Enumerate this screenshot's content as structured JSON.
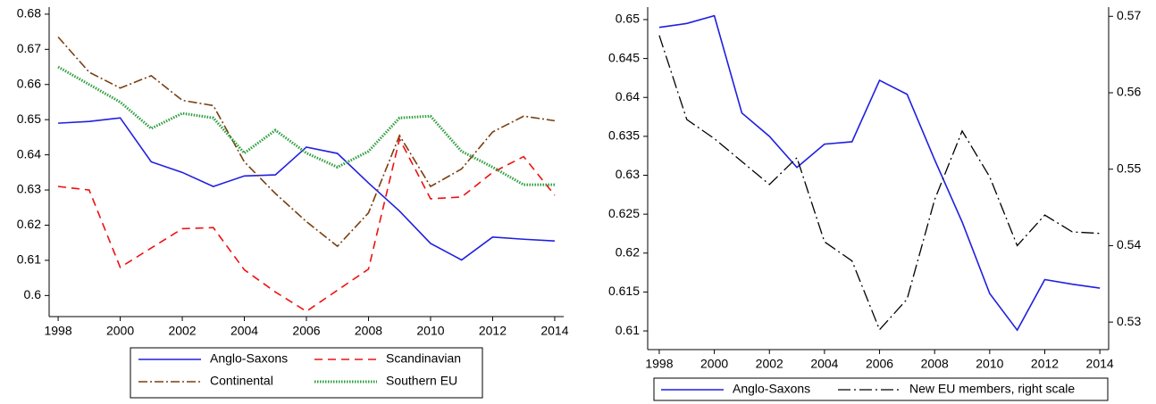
{
  "chart_data": [
    {
      "type": "line",
      "legend": "bottom",
      "x": [
        1998,
        1999,
        2000,
        2001,
        2002,
        2003,
        2004,
        2005,
        2006,
        2007,
        2008,
        2009,
        2010,
        2011,
        2012,
        2013,
        2014
      ],
      "xlim": [
        1997.71,
        2014.29
      ],
      "xticks": [
        1998,
        2000,
        2002,
        2004,
        2006,
        2008,
        2010,
        2012,
        2014
      ],
      "ylim": [
        0.594,
        0.682
      ],
      "yticks": [
        0.6,
        0.61,
        0.62,
        0.63,
        0.64,
        0.65,
        0.66,
        0.67,
        0.68
      ],
      "series": [
        {
          "name": "Anglo-Saxons",
          "color": "#1f1fe0",
          "style": "solid",
          "values": [
            0.649,
            0.6495,
            0.6505,
            0.638,
            0.635,
            0.631,
            0.634,
            0.6343,
            0.6422,
            0.6404,
            0.632,
            0.624,
            0.6148,
            0.6101,
            0.6166,
            0.616,
            0.6155
          ]
        },
        {
          "name": "Scandinavian",
          "color": "#ee1111",
          "style": "dash",
          "values": [
            0.631,
            0.63,
            0.608,
            0.6135,
            0.619,
            0.6193,
            0.6073,
            0.601,
            0.5955,
            0.6015,
            0.6075,
            0.6445,
            0.6275,
            0.628,
            0.635,
            0.6395,
            0.6285
          ]
        },
        {
          "name": "Continental",
          "color": "#7a3f10",
          "style": "dashdot",
          "values": [
            0.6735,
            0.6635,
            0.659,
            0.6625,
            0.6555,
            0.654,
            0.638,
            0.629,
            0.621,
            0.614,
            0.6235,
            0.6455,
            0.631,
            0.636,
            0.6465,
            0.651,
            0.6497
          ]
        },
        {
          "name": "Southern EU",
          "color": "#2e9e3e",
          "style": "dot",
          "values": [
            0.665,
            0.66,
            0.655,
            0.6475,
            0.6518,
            0.6505,
            0.6405,
            0.647,
            0.6405,
            0.6365,
            0.641,
            0.6505,
            0.651,
            0.641,
            0.6365,
            0.6315,
            0.6315
          ]
        }
      ]
    },
    {
      "type": "line",
      "legend": "bottom",
      "x": [
        1998,
        1999,
        2000,
        2001,
        2002,
        2003,
        2004,
        2005,
        2006,
        2007,
        2008,
        2009,
        2010,
        2011,
        2012,
        2013,
        2014
      ],
      "xlim": [
        1997.58,
        2014.32
      ],
      "xticks": [
        1998,
        2000,
        2002,
        2004,
        2006,
        2008,
        2010,
        2012,
        2014
      ],
      "ylim": [
        0.6076,
        0.6516
      ],
      "yticks": [
        0.61,
        0.615,
        0.62,
        0.625,
        0.63,
        0.635,
        0.64,
        0.645,
        0.65
      ],
      "y2lim": [
        0.5264,
        0.5712
      ],
      "y2ticks": [
        0.53,
        0.54,
        0.55,
        0.56,
        0.57
      ],
      "series": [
        {
          "name": "Anglo-Saxons",
          "color": "#1f1fe0",
          "style": "solid",
          "values": [
            0.649,
            0.6495,
            0.6505,
            0.638,
            0.635,
            0.631,
            0.634,
            0.6343,
            0.6422,
            0.6404,
            0.632,
            0.624,
            0.6148,
            0.6101,
            0.6166,
            0.616,
            0.6155
          ]
        },
        {
          "name": "New EU members, right scale",
          "color": "#000000",
          "style": "longdashdot",
          "axis": "y2",
          "values": [
            0.5675,
            0.5565,
            0.554,
            0.551,
            0.548,
            0.5515,
            0.5405,
            0.538,
            0.529,
            0.533,
            0.546,
            0.555,
            0.549,
            0.54,
            0.544,
            0.5418,
            0.5416
          ]
        }
      ]
    }
  ]
}
